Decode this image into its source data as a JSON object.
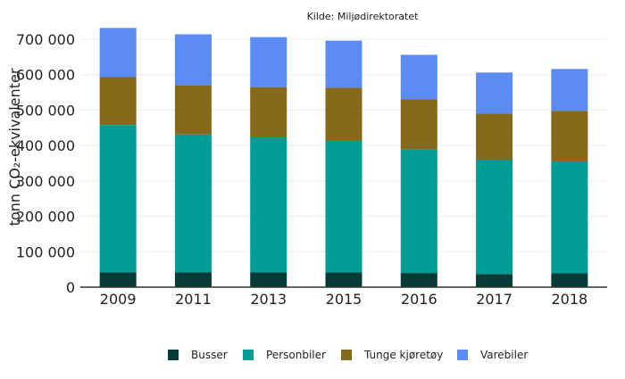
{
  "chart_data": {
    "type": "bar",
    "stacked": true,
    "subtitle": "Kilde: Miljødirektoratet",
    "ylabel": "tonn CO₂-ekvivalenter",
    "categories": [
      "2009",
      "2011",
      "2013",
      "2015",
      "2016",
      "2017",
      "2018"
    ],
    "ylim": [
      0,
      700000
    ],
    "yticks": [
      0,
      100000,
      200000,
      300000,
      400000,
      500000,
      600000,
      700000
    ],
    "ytick_labels": [
      "0",
      "100 000",
      "200 000",
      "300 000",
      "400 000",
      "500 000",
      "600 000",
      "700 000"
    ],
    "grid": true,
    "legend_position": "bottom",
    "series": [
      {
        "name": "Busser",
        "color": "#073b37",
        "values": [
          42000,
          42000,
          42000,
          42000,
          40000,
          37000,
          39000
        ]
      },
      {
        "name": "Personbiler",
        "color": "#009c96",
        "values": [
          416000,
          389000,
          381000,
          371000,
          348000,
          323000,
          316000
        ]
      },
      {
        "name": "Tunge kjøretøy",
        "color": "#86691b",
        "values": [
          135000,
          139000,
          142000,
          150000,
          143000,
          130000,
          143000
        ]
      },
      {
        "name": "Varebiler",
        "color": "#5b8cf5",
        "values": [
          139000,
          144000,
          141000,
          133000,
          125000,
          116000,
          118000
        ]
      }
    ]
  }
}
